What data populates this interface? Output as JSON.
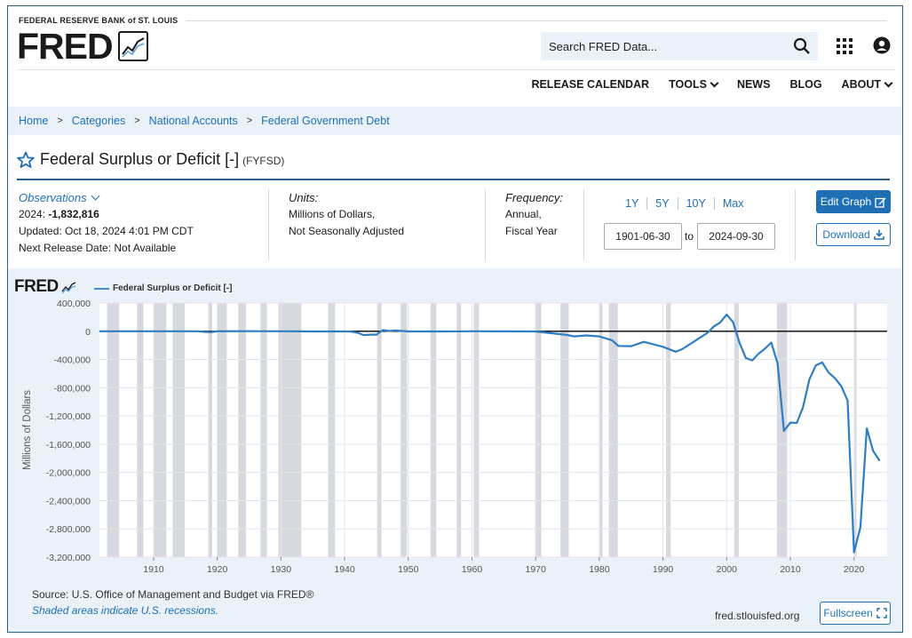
{
  "header": {
    "org": "FEDERAL RESERVE BANK of ST. LOUIS",
    "logo": "FRED",
    "logo_icon": "trend-chart-icon",
    "search_placeholder": "Search FRED Data...",
    "nav": [
      "RELEASE CALENDAR",
      "TOOLS",
      "NEWS",
      "BLOG",
      "ABOUT"
    ]
  },
  "breadcrumb": [
    "Home",
    "Categories",
    "National Accounts",
    "Federal Government Debt"
  ],
  "series": {
    "title": "Federal Surplus or Deficit [-]",
    "id": "(FYFSD)"
  },
  "observations": {
    "label": "Observations",
    "latest_prefix": "2024: ",
    "latest_value": "-1,832,816",
    "updated": "Updated: Oct 18, 2024 4:01 PM CDT",
    "next_release": "Next Release Date: Not Available"
  },
  "units": {
    "label": "Units:",
    "line1": "Millions of Dollars,",
    "line2": "Not Seasonally Adjusted"
  },
  "frequency": {
    "label": "Frequency:",
    "line1": "Annual,",
    "line2": "Fiscal Year"
  },
  "range_buttons": [
    "1Y",
    "5Y",
    "10Y",
    "Max"
  ],
  "date_range": {
    "start": "1901-06-30",
    "to": "to",
    "end": "2024-09-30"
  },
  "buttons": {
    "edit": "Edit Graph",
    "download": "Download",
    "fullscreen": "Fullscreen"
  },
  "footer": {
    "source": "Source: U.S. Office of Management and Budget via FRED®",
    "note": "Shaded areas indicate U.S. recessions.",
    "site": "fred.stlouisfed.org"
  },
  "colors": {
    "accent": "#1f6fb5",
    "line": "#2f7dc2",
    "panel": "#eaf1f8",
    "recession": "#d6d9dd"
  },
  "chart_data": {
    "type": "line",
    "title": "Federal Surplus or Deficit [-]",
    "legend": "Federal Surplus or Deficit [-]",
    "ylabel": "Millions of Dollars",
    "xlabel": "",
    "xlim": [
      1901.5,
      2025.2
    ],
    "ylim": [
      -3200000,
      400000
    ],
    "yticks": [
      400000,
      0,
      -400000,
      -800000,
      -1200000,
      -1600000,
      -2000000,
      -2400000,
      -2800000,
      -3200000
    ],
    "ytick_labels": [
      "400,000",
      "0",
      "-400,000",
      "-800,000",
      "-1,200,000",
      "-1,600,000",
      "-2,000,000",
      "-2,400,000",
      "-2,800,000",
      "-3,200,000"
    ],
    "xticks": [
      1910,
      1920,
      1930,
      1940,
      1950,
      1960,
      1970,
      1980,
      1990,
      2000,
      2010,
      2020
    ],
    "grid": true,
    "zero_line": true,
    "recessions": [
      [
        1902.7,
        1904.6
      ],
      [
        1907.4,
        1908.4
      ],
      [
        1910.0,
        1912.0
      ],
      [
        1913.0,
        1914.9
      ],
      [
        1918.6,
        1919.2
      ],
      [
        1920.0,
        1921.5
      ],
      [
        1923.3,
        1924.5
      ],
      [
        1926.8,
        1927.8
      ],
      [
        1929.6,
        1933.2
      ],
      [
        1937.4,
        1938.5
      ],
      [
        1945.1,
        1945.8
      ],
      [
        1948.8,
        1949.8
      ],
      [
        1953.5,
        1954.4
      ],
      [
        1957.6,
        1958.3
      ],
      [
        1960.3,
        1961.1
      ],
      [
        1969.9,
        1970.9
      ],
      [
        1973.9,
        1975.2
      ],
      [
        1980.0,
        1980.5
      ],
      [
        1981.5,
        1982.9
      ],
      [
        1990.5,
        1991.2
      ],
      [
        2001.2,
        2001.9
      ],
      [
        2007.9,
        2009.5
      ],
      [
        2020.1,
        2020.4
      ]
    ],
    "series": [
      {
        "name": "Federal Surplus or Deficit [-]",
        "x": [
          1901,
          1910,
          1916,
          1917,
          1918,
          1919,
          1920,
          1925,
          1931,
          1935,
          1940,
          1941,
          1942,
          1943,
          1944,
          1945,
          1946,
          1947,
          1948,
          1950,
          1955,
          1960,
          1965,
          1970,
          1972,
          1975,
          1976,
          1978,
          1980,
          1982,
          1983,
          1985,
          1987,
          1990,
          1992,
          1993,
          1997,
          1998,
          1999,
          2000,
          2001,
          2002,
          2003,
          2004,
          2005,
          2006,
          2007,
          2008,
          2009,
          2010,
          2011,
          2012,
          2013,
          2014,
          2015,
          2016,
          2017,
          2018,
          2019,
          2020,
          2021,
          2022,
          2023,
          2024
        ],
        "values": [
          63,
          -18,
          -48,
          -853,
          -9000,
          -13363,
          291,
          717,
          -462,
          -2791,
          -2920,
          -4941,
          -20503,
          -54554,
          -47557,
          -47553,
          15936,
          4018,
          11796,
          -3119,
          -2993,
          301,
          -1411,
          -2842,
          -23373,
          -53242,
          -73732,
          -59185,
          -73830,
          -127977,
          -207802,
          -212308,
          -149730,
          -221036,
          -290321,
          -255051,
          -21884,
          69270,
          125610,
          236241,
          128236,
          -157758,
          -377585,
          -412727,
          -318346,
          -248181,
          -160701,
          -458553,
          -1412688,
          -1294373,
          -1299599,
          -1076573,
          -679775,
          -484602,
          -442000,
          -584651,
          -665446,
          -779137,
          -983593,
          -3132460,
          -2775320,
          -1375852,
          -1694012,
          -1832816
        ]
      }
    ]
  }
}
